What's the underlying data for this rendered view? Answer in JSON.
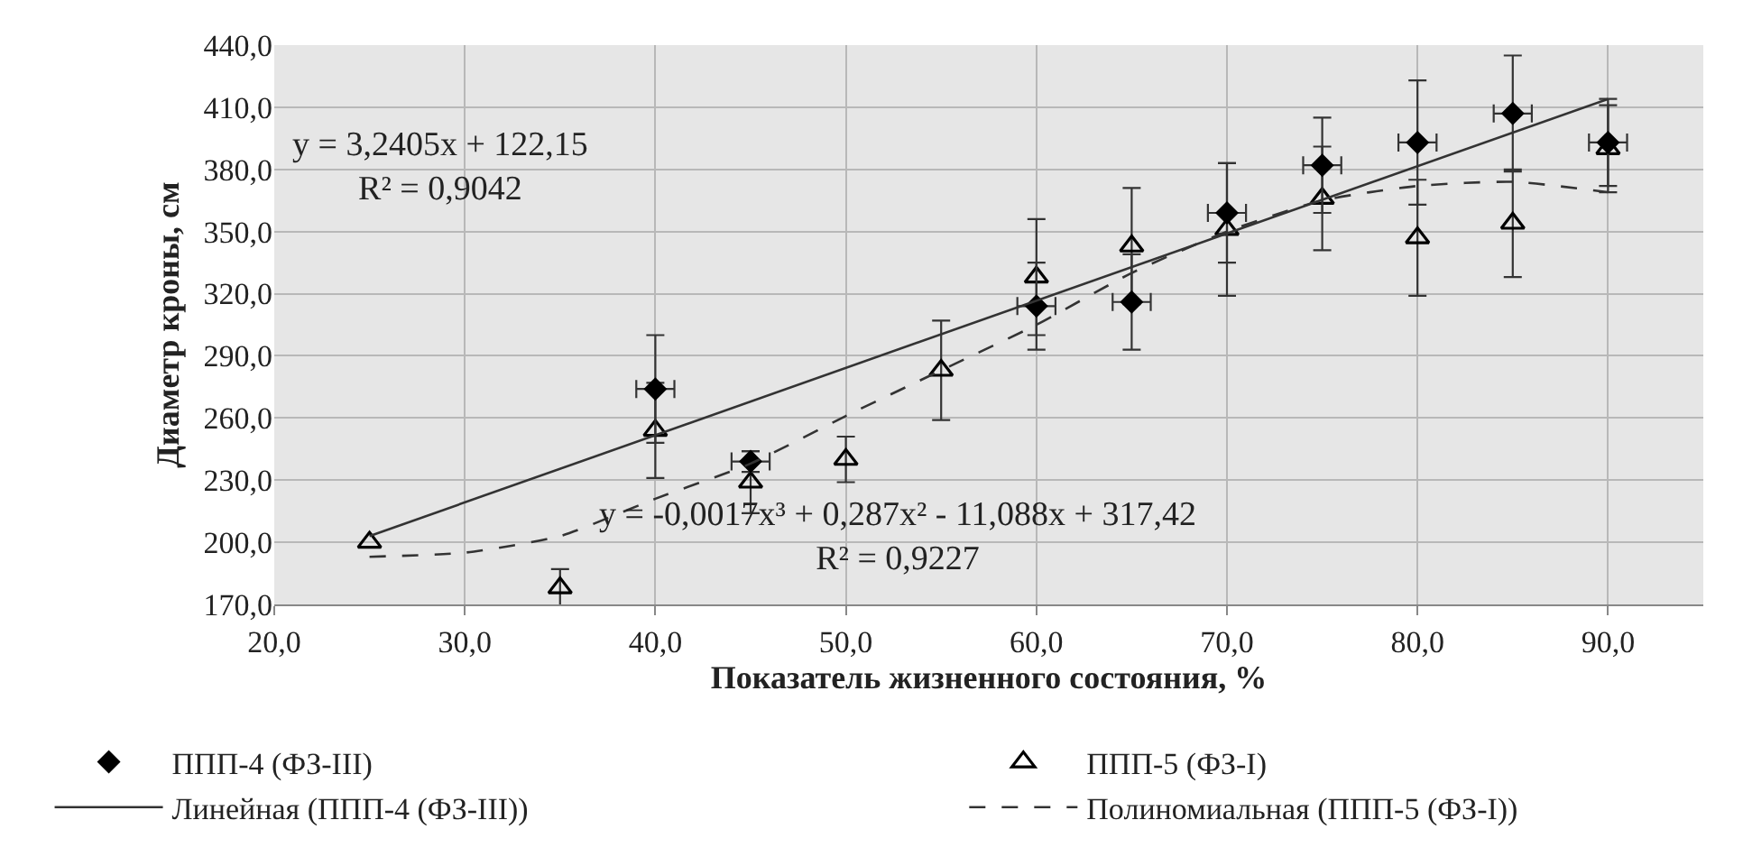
{
  "chart_data": {
    "type": "scatter",
    "xlabel": "Показатель жизненного состояния, %",
    "ylabel": "Диаметр кроны, см",
    "xlim": [
      20,
      95
    ],
    "xticks": [
      {
        "value": 20,
        "label": "20,0"
      },
      {
        "value": 30,
        "label": "30,0"
      },
      {
        "value": 40,
        "label": "40,0"
      },
      {
        "value": 50,
        "label": "50,0"
      },
      {
        "value": 60,
        "label": "60,0"
      },
      {
        "value": 70,
        "label": "70,0"
      },
      {
        "value": 80,
        "label": "80,0"
      },
      {
        "value": 90,
        "label": "90,0"
      }
    ],
    "ylim": [
      170,
      440
    ],
    "yticks": [
      {
        "value": 170,
        "label": "170,0"
      },
      {
        "value": 200,
        "label": "200,0"
      },
      {
        "value": 230,
        "label": "230,0"
      },
      {
        "value": 260,
        "label": "260,0"
      },
      {
        "value": 290,
        "label": "290,0"
      },
      {
        "value": 320,
        "label": "320,0"
      },
      {
        "value": 350,
        "label": "350,0"
      },
      {
        "value": 380,
        "label": "380,0"
      },
      {
        "value": 410,
        "label": "410,0"
      },
      {
        "value": 440,
        "label": "440,0"
      }
    ],
    "grid": true,
    "legend": "bottom",
    "series": [
      {
        "name": "ППП-4 (ФЗ-III)",
        "marker": "diamond",
        "color": "#000000",
        "x": [
          40,
          45,
          60,
          65,
          70,
          75,
          80,
          85,
          90
        ],
        "values": [
          274,
          239,
          314,
          316,
          359,
          382,
          393,
          407,
          393
        ],
        "errors": [
          26,
          5,
          21,
          23,
          24,
          23,
          30,
          28,
          21
        ],
        "xerrors": [
          1,
          1,
          1,
          1,
          1,
          1,
          1,
          1,
          1
        ]
      },
      {
        "name": "ППП-5 (ФЗ-I)",
        "marker": "triangle",
        "color": "#000000",
        "x": [
          25,
          35,
          40,
          45,
          50,
          55,
          60,
          65,
          70,
          75,
          80,
          85,
          90
        ],
        "values": [
          200,
          178,
          254,
          229,
          240,
          283,
          328,
          343,
          351,
          366,
          347,
          354,
          390
        ],
        "errors": [
          null,
          9,
          23,
          15,
          11,
          24,
          28,
          28,
          32,
          25,
          28,
          26,
          21
        ]
      },
      {
        "name": "Линейная (ППП-4 (ФЗ-III))",
        "type": "line",
        "line_style": "solid",
        "marker": "none",
        "color": "#333333",
        "x": [
          25,
          90
        ],
        "values": [
          203,
          414
        ]
      },
      {
        "name": "Полиномиальная (ППП-5 (ФЗ-I))",
        "type": "line",
        "line_style": "dashed",
        "marker": "none",
        "color": "#333333",
        "x": [
          25,
          30,
          35,
          40,
          45,
          50,
          55,
          60,
          65,
          70,
          75,
          80,
          85,
          90
        ],
        "values": [
          193,
          195,
          203,
          221,
          238,
          261,
          283,
          305,
          330,
          350,
          365,
          372,
          374,
          369
        ]
      }
    ],
    "annotations": [
      "y = 3,2405x + 122,15\nR² = 0,9042",
      "y = -0,0017x³ + 0,287x² - 11,088x + 317,42\nR² = 0,9227"
    ]
  }
}
